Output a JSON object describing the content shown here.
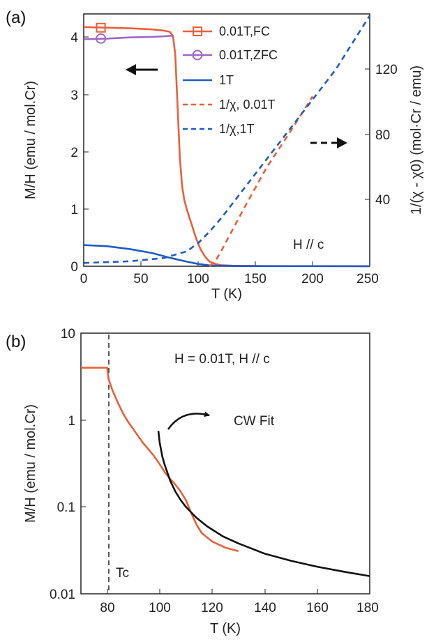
{
  "colors": {
    "orange": "#e8603a",
    "purple": "#a066c8",
    "blue": "#1f5bc5",
    "black": "#111111"
  },
  "chart_data": [
    {
      "panel_label": "(a)",
      "type": "line",
      "xlabel": "T (K)",
      "ylabel": "M/H (emu / mol.Cr)",
      "y2label": "1/(χ - χ0) (mol·Cr / emu)",
      "xlim": [
        0,
        250
      ],
      "ylim": [
        0,
        4.4
      ],
      "y2lim": [
        0,
        153
      ],
      "xticks": [
        "0",
        "50",
        "100",
        "150",
        "200",
        "250"
      ],
      "yticks": [
        "0",
        "1",
        "2",
        "3",
        "4"
      ],
      "y2ticks": [
        "40",
        "80",
        "120"
      ],
      "annotation": "H // c",
      "arrows": [
        {
          "direction": "left",
          "style": "solid",
          "points_to": "left axis"
        },
        {
          "direction": "right",
          "style": "dashed",
          "points_to": "right axis"
        }
      ],
      "legend_position": "top-center",
      "series": [
        {
          "name": "0.01T,FC",
          "axis": "left",
          "color": "orange",
          "style": "solid",
          "marker": "square",
          "x": [
            0,
            20,
            40,
            60,
            70,
            75,
            78,
            80,
            82,
            84,
            86,
            88,
            90,
            94,
            98,
            102,
            106,
            110,
            115,
            120,
            130,
            150,
            250
          ],
          "y": [
            4.17,
            4.16,
            4.15,
            4.13,
            4.11,
            4.09,
            4.02,
            3.7,
            2.8,
            1.9,
            1.4,
            1.15,
            1.0,
            0.75,
            0.5,
            0.3,
            0.17,
            0.08,
            0.04,
            0.02,
            0.01,
            0.005,
            0.0
          ]
        },
        {
          "name": "0.01T,ZFC",
          "axis": "left",
          "color": "purple",
          "style": "solid",
          "marker": "circle",
          "x": [
            0,
            20,
            40,
            60,
            70,
            76,
            78
          ],
          "y": [
            3.96,
            3.97,
            3.99,
            4.0,
            4.01,
            4.02,
            4.02
          ]
        },
        {
          "name": "1T",
          "axis": "left",
          "color": "blue",
          "style": "solid",
          "x": [
            0,
            20,
            40,
            60,
            75,
            90,
            100,
            110,
            120,
            140,
            160,
            200,
            250
          ],
          "y": [
            0.37,
            0.35,
            0.3,
            0.23,
            0.15,
            0.08,
            0.04,
            0.015,
            0.008,
            0.004,
            0.003,
            0.002,
            0.001
          ]
        },
        {
          "name": "1/χ, 0.01T",
          "axis": "right",
          "color": "orange",
          "style": "dashed",
          "x": [
            110,
            115,
            120,
            140,
            160,
            180,
            200
          ],
          "y": [
            0,
            3,
            9,
            35,
            60,
            81,
            103
          ]
        },
        {
          "name": "1/χ,1T",
          "axis": "right",
          "color": "blue",
          "style": "dashed",
          "x": [
            0,
            40,
            70,
            90,
            100,
            110,
            120,
            140,
            160,
            180,
            200,
            220,
            250
          ],
          "y": [
            2,
            3,
            5,
            9,
            14,
            21,
            29,
            47,
            65,
            83,
            101,
            119,
            152
          ]
        }
      ]
    },
    {
      "panel_label": "(b)",
      "type": "line",
      "xlabel": "T (K)",
      "ylabel": "M/H (emu / mol.Cr)",
      "xlim": [
        70,
        180
      ],
      "ylim": [
        0.01,
        10
      ],
      "yscale": "log",
      "xticks": [
        "80",
        "100",
        "120",
        "140",
        "160",
        "180"
      ],
      "yticks": [
        "0.01",
        "0.1",
        "1",
        "10"
      ],
      "annotation": "H = 0.01T, H // c",
      "fit_label": "CW Fit",
      "marker_line": {
        "x": 80.5,
        "label": "Tc"
      },
      "series": [
        {
          "name": "",
          "color": "orange",
          "style": "solid",
          "x": [
            70,
            76,
            80,
            80.5,
            82,
            84,
            86,
            88,
            90,
            92,
            94,
            96,
            98,
            100,
            102,
            104,
            106,
            108,
            110,
            112,
            114,
            116,
            120,
            125,
            130
          ],
          "y": [
            4.0,
            4.0,
            4.0,
            3.0,
            2.2,
            1.6,
            1.2,
            0.95,
            0.78,
            0.64,
            0.53,
            0.45,
            0.38,
            0.31,
            0.25,
            0.21,
            0.18,
            0.15,
            0.12,
            0.085,
            0.063,
            0.05,
            0.04,
            0.034,
            0.031
          ]
        },
        {
          "name": "CW Fit",
          "color": "black",
          "style": "solid",
          "x": [
            99.5,
            100,
            101,
            102,
            104,
            106,
            108,
            110,
            114,
            118,
            124,
            130,
            140,
            150,
            160,
            170,
            180
          ],
          "y": [
            0.75,
            0.55,
            0.38,
            0.3,
            0.2,
            0.15,
            0.12,
            0.1,
            0.075,
            0.06,
            0.046,
            0.038,
            0.029,
            0.024,
            0.0205,
            0.018,
            0.016
          ]
        }
      ]
    }
  ]
}
